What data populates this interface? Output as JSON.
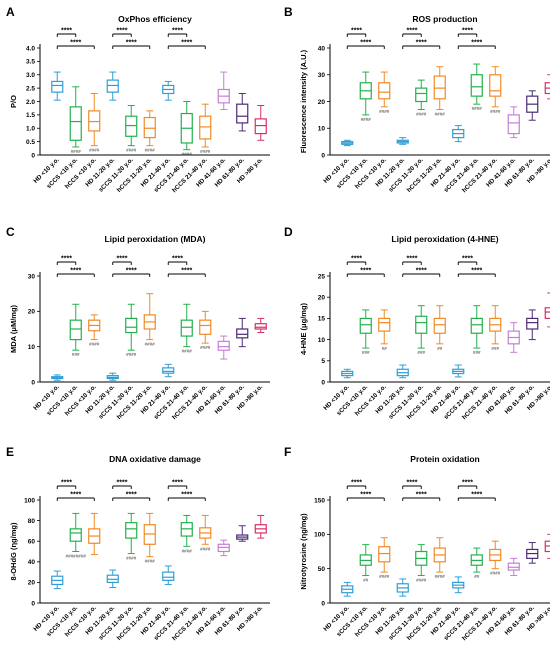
{
  "colors": [
    "#2e9fd6",
    "#22b14c",
    "#f08a24",
    "#2e9fd6",
    "#22b14c",
    "#f08a24",
    "#2e9fd6",
    "#22b14c",
    "#f08a24",
    "#c77dd8",
    "#4b2a75",
    "#d63066"
  ],
  "chart_data": [
    {
      "panel": "A",
      "type": "box",
      "title": "OxPhos efficiency",
      "ylabel": "P/O",
      "ylim": [
        0,
        4.0
      ],
      "yticks": [
        "0",
        "0.5",
        "1.0",
        "1.5",
        "2.0",
        "2.5",
        "3.0",
        "3.5",
        "4.0"
      ],
      "categories": [
        "HD <10 y.o.",
        "sCCS <10 y.o.",
        "hCCS <10 y.o.",
        "HD 11-20 y.o.",
        "sCCS 11-20 y.o.",
        "hCCS 11-20 y.o.",
        "HD 21-40 y.o.",
        "sCCS 21-40 y.o.",
        "hCCS 21-40 y.o.",
        "HD 41-60 y.o.",
        "HD 61-80 y.o.",
        "HD >80 y.o."
      ],
      "boxes": [
        [
          2.05,
          2.35,
          2.6,
          2.75,
          3.1
        ],
        [
          0.3,
          0.55,
          1.25,
          1.8,
          2.55
        ],
        [
          0.35,
          0.9,
          1.25,
          1.65,
          2.3
        ],
        [
          2.05,
          2.35,
          2.6,
          2.8,
          3.1
        ],
        [
          0.35,
          0.7,
          1.1,
          1.45,
          1.85
        ],
        [
          0.35,
          0.65,
          1.0,
          1.4,
          1.65
        ],
        [
          2.05,
          2.3,
          2.45,
          2.6,
          2.75
        ],
        [
          0.2,
          0.45,
          1.0,
          1.55,
          2.0
        ],
        [
          0.3,
          0.6,
          1.05,
          1.45,
          1.9
        ],
        [
          1.7,
          1.95,
          2.2,
          2.45,
          3.1
        ],
        [
          0.9,
          1.2,
          1.45,
          1.9,
          2.3
        ],
        [
          0.55,
          0.8,
          1.1,
          1.35,
          1.85
        ]
      ],
      "hash_labels": [
        "",
        "####",
        "####",
        "",
        "####",
        "####",
        "",
        "####",
        "####",
        "",
        "",
        ""
      ],
      "sig_label": "****",
      "sig_brackets": [
        [
          0,
          1,
          0
        ],
        [
          0,
          2,
          1
        ],
        [
          3,
          4,
          0
        ],
        [
          3,
          5,
          1
        ],
        [
          6,
          7,
          0
        ],
        [
          6,
          8,
          1
        ]
      ]
    },
    {
      "panel": "B",
      "type": "box",
      "title": "ROS production",
      "ylabel": "Fluorescence intensity (A.U.)",
      "ylim": [
        0,
        40
      ],
      "yticks": [
        "0",
        "10",
        "20",
        "30",
        "40"
      ],
      "categories": [
        "HD <10 y.o.",
        "sCCS <10 y.o.",
        "hCCS <10 y.o.",
        "HD 11-20 y.o.",
        "sCCS 11-20 y.o.",
        "hCCS 11-20 y.o.",
        "HD 21-40 y.o.",
        "sCCS 21-40 y.o.",
        "hCCS 21-40 y.o.",
        "HD 41-60 y.o.",
        "HD 61-80 y.o.",
        "HD >80 y.o."
      ],
      "boxes": [
        [
          3.5,
          4,
          4.5,
          5,
          5.5
        ],
        [
          15,
          21,
          24,
          27,
          31
        ],
        [
          18,
          21,
          23.5,
          27,
          31
        ],
        [
          4,
          4.5,
          5,
          5.5,
          6.5
        ],
        [
          17,
          20,
          23,
          25,
          28
        ],
        [
          17,
          21,
          25,
          29.5,
          33
        ],
        [
          5,
          6.5,
          8,
          9.5,
          11
        ],
        [
          19,
          22,
          25.5,
          30,
          34
        ],
        [
          18,
          22,
          24,
          30,
          33
        ],
        [
          6.5,
          8,
          12,
          15,
          18
        ],
        [
          13,
          16,
          19,
          22,
          24
        ],
        [
          21,
          23,
          25,
          27,
          30
        ]
      ],
      "hash_labels": [
        "",
        "####",
        "####",
        "",
        "####",
        "####",
        "",
        "####",
        "####",
        "",
        "",
        ""
      ],
      "sig_label": "****",
      "sig_brackets": [
        [
          0,
          1,
          0
        ],
        [
          0,
          2,
          1
        ],
        [
          3,
          4,
          0
        ],
        [
          3,
          5,
          1
        ],
        [
          6,
          7,
          0
        ],
        [
          6,
          8,
          1
        ]
      ]
    },
    {
      "panel": "C",
      "type": "box",
      "title": "Lipid peroxidation (MDA)",
      "ylabel": "MDA (μM/mg)",
      "ylim": [
        0,
        30
      ],
      "yticks": [
        "0",
        "10",
        "20",
        "30"
      ],
      "categories": [
        "HD <10 y.o.",
        "sCCS <10 y.o.",
        "hCCS <10 y.o.",
        "HD 11-20 y.o.",
        "sCCS 11-20 y.o.",
        "hCCS 11-20 y.o.",
        "HD 21-40 y.o.",
        "sCCS 21-40 y.o.",
        "hCCS 21-40 y.o.",
        "HD 41-60 y.o.",
        "HD 61-80 y.o.",
        "HD >80 y.o."
      ],
      "boxes": [
        [
          0.5,
          1,
          1.2,
          1.5,
          2
        ],
        [
          9,
          12,
          15,
          17.5,
          22
        ],
        [
          12,
          14.5,
          16,
          17.5,
          19
        ],
        [
          0.5,
          1,
          1.3,
          1.8,
          2.5
        ],
        [
          9,
          14,
          15.5,
          18,
          22
        ],
        [
          12,
          15,
          17,
          19,
          25
        ],
        [
          1.5,
          2.5,
          3,
          4,
          5
        ],
        [
          10,
          13,
          15.5,
          17.5,
          22
        ],
        [
          11,
          13.5,
          16,
          17.5,
          20
        ],
        [
          6.5,
          9,
          10,
          11.5,
          13
        ],
        [
          10,
          12.5,
          13.5,
          15,
          18
        ],
        [
          14,
          15,
          15.5,
          16.5,
          18
        ]
      ],
      "hash_labels": [
        "",
        "###",
        "####",
        "",
        "####",
        "####",
        "",
        "####",
        "####",
        "",
        "",
        ""
      ],
      "sig_label": "****",
      "sig_brackets": [
        [
          0,
          1,
          0
        ],
        [
          0,
          2,
          1
        ],
        [
          3,
          4,
          0
        ],
        [
          3,
          5,
          1
        ],
        [
          6,
          7,
          0
        ],
        [
          6,
          8,
          1
        ]
      ]
    },
    {
      "panel": "D",
      "type": "box",
      "title": "Lipid peroxidation (4-HNE)",
      "ylabel": "4-HNE (μg/mg)",
      "ylim": [
        0,
        25
      ],
      "yticks": [
        "0",
        "5",
        "10",
        "15",
        "20",
        "25"
      ],
      "categories": [
        "HD <10 y.o.",
        "sCCS <10 y.o.",
        "hCCS <10 y.o.",
        "HD 11-20 y.o.",
        "sCCS 11-20 y.o.",
        "hCCS 11-20 y.o.",
        "HD 21-40 y.o.",
        "sCCS 21-40 y.o.",
        "hCCS 21-40 y.o.",
        "HD 41-60 y.o.",
        "HD 61-80 y.o.",
        "HD >80 y.o."
      ],
      "boxes": [
        [
          1,
          1.5,
          2,
          2.5,
          3
        ],
        [
          8,
          11.5,
          13.5,
          15,
          17
        ],
        [
          9,
          12,
          14,
          15,
          17
        ],
        [
          1,
          1.5,
          2.2,
          3,
          4
        ],
        [
          8,
          11.5,
          14,
          15.5,
          18
        ],
        [
          9,
          11.5,
          13.5,
          15,
          18
        ],
        [
          1.2,
          2,
          2.5,
          3,
          4
        ],
        [
          8,
          11.5,
          13.5,
          15,
          18
        ],
        [
          9,
          12,
          13.5,
          15,
          18
        ],
        [
          7,
          9,
          10.5,
          12,
          14
        ],
        [
          10,
          12.5,
          14,
          15,
          17
        ],
        [
          13,
          15,
          16.5,
          17.5,
          21
        ]
      ],
      "hash_labels": [
        "",
        "###",
        "##",
        "",
        "###",
        "##",
        "",
        "###",
        "###",
        "",
        "",
        ""
      ],
      "sig_label": "****",
      "sig_brackets": [
        [
          0,
          1,
          0
        ],
        [
          0,
          2,
          1
        ],
        [
          3,
          4,
          0
        ],
        [
          3,
          5,
          1
        ],
        [
          6,
          7,
          0
        ],
        [
          6,
          8,
          1
        ]
      ]
    },
    {
      "panel": "E",
      "type": "box",
      "title": "DNA oxidative damage",
      "ylabel": "8-OHdG (ηg/mg)",
      "ylim": [
        0,
        100
      ],
      "yticks": [
        "0",
        "20",
        "40",
        "60",
        "80",
        "100"
      ],
      "categories": [
        "HD <10 y.o.",
        "sCCS <10 y.o.",
        "hCCS <10 y.o.",
        "HD 11-20 y.o.",
        "sCCS 11-20 y.o.",
        "hCCS 11-20 y.o.",
        "HD 21-40 y.o.",
        "sCCS 21-40 y.o.",
        "hCCS 21-40 y.o.",
        "HD 41-60 y.o.",
        "HD 61-80 y.o.",
        "HD >80 y.o."
      ],
      "boxes": [
        [
          14,
          18,
          22,
          26,
          31
        ],
        [
          50,
          60,
          68,
          72,
          87
        ],
        [
          47,
          58,
          65,
          72,
          87
        ],
        [
          15,
          20,
          23,
          27,
          32
        ],
        [
          48,
          63,
          72,
          78,
          87
        ],
        [
          45,
          57,
          67,
          76,
          87
        ],
        [
          18,
          22,
          25,
          30,
          36
        ],
        [
          55,
          65,
          72,
          78,
          85
        ],
        [
          57,
          63,
          68,
          73,
          85
        ],
        [
          46,
          50,
          54,
          57,
          61
        ],
        [
          60,
          62,
          64,
          66,
          75
        ],
        [
          63,
          68,
          72,
          76,
          85
        ]
      ],
      "hash_labels": [
        "",
        "########",
        "",
        "",
        "####",
        "####",
        "",
        "####",
        "####",
        "",
        "",
        ""
      ],
      "sig_label": "****",
      "sig_brackets": [
        [
          0,
          1,
          0
        ],
        [
          0,
          2,
          1
        ],
        [
          3,
          4,
          0
        ],
        [
          3,
          5,
          1
        ],
        [
          6,
          7,
          0
        ],
        [
          6,
          8,
          1
        ]
      ]
    },
    {
      "panel": "F",
      "type": "box",
      "title": "Protein oxidation",
      "ylabel": "Nitrotyrosine (ηg/mg)",
      "ylim": [
        0,
        150
      ],
      "yticks": [
        "0",
        "50",
        "100",
        "150"
      ],
      "categories": [
        "HD <10 y.o.",
        "sCCS <10 y.o.",
        "hCCS <10 y.o.",
        "HD 11-20 y.o.",
        "sCCS 11-20 y.o.",
        "hCCS 11-20 y.o.",
        "HD 21-40 y.o.",
        "sCCS 21-40 y.o.",
        "hCCS 21-40 y.o.",
        "HD 41-60 y.o.",
        "HD 61-80 y.o.",
        "HD >80 y.o."
      ],
      "boxes": [
        [
          10,
          15,
          20,
          25,
          30
        ],
        [
          40,
          55,
          62,
          70,
          85
        ],
        [
          45,
          60,
          72,
          82,
          95
        ],
        [
          10,
          16,
          22,
          28,
          35
        ],
        [
          40,
          55,
          65,
          75,
          85
        ],
        [
          45,
          60,
          70,
          80,
          95
        ],
        [
          15,
          22,
          26,
          30,
          38
        ],
        [
          45,
          55,
          62,
          70,
          80
        ],
        [
          50,
          62,
          70,
          78,
          90
        ],
        [
          40,
          48,
          52,
          58,
          65
        ],
        [
          58,
          65,
          72,
          78,
          88
        ],
        [
          65,
          75,
          83,
          90,
          100
        ]
      ],
      "hash_labels": [
        "",
        "##",
        "####",
        "",
        "####",
        "####",
        "",
        "##",
        "####",
        "",
        "",
        ""
      ],
      "sig_label": "****",
      "sig_brackets": [
        [
          0,
          1,
          0
        ],
        [
          0,
          2,
          1
        ],
        [
          3,
          4,
          0
        ],
        [
          3,
          5,
          1
        ],
        [
          6,
          7,
          0
        ],
        [
          6,
          8,
          1
        ]
      ]
    }
  ]
}
